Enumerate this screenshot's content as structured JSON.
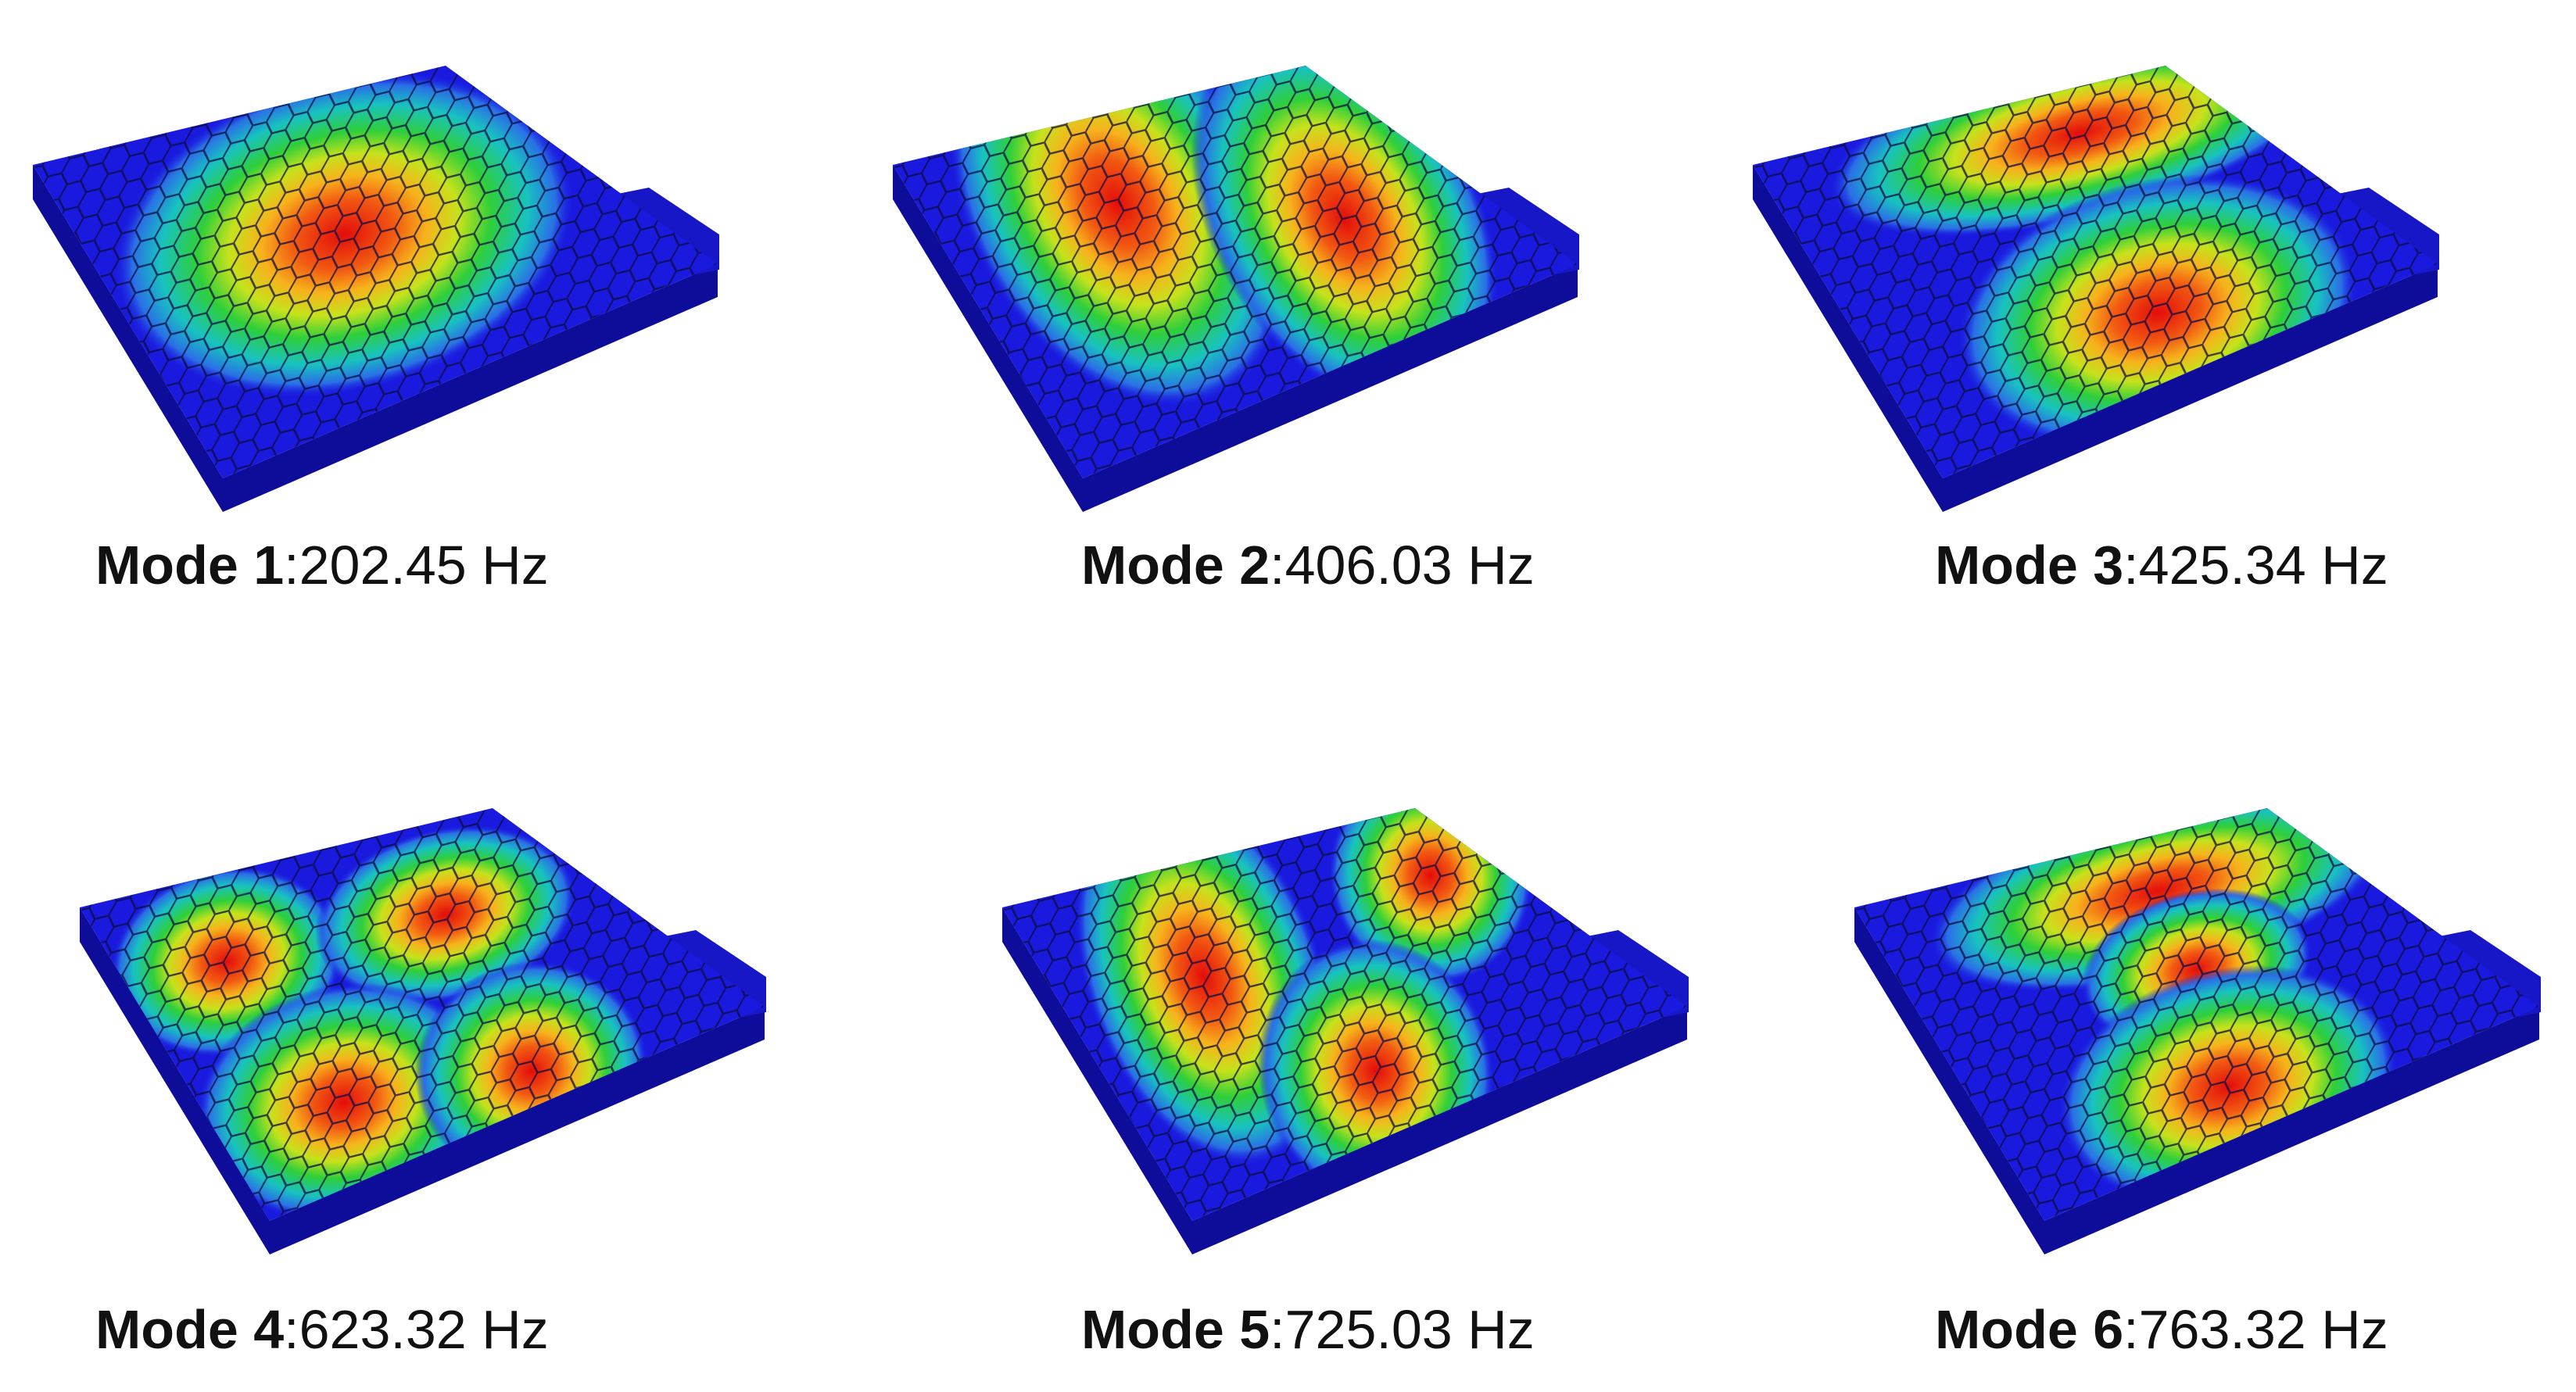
{
  "separator": ":",
  "modes": [
    {
      "label": "Mode 1",
      "frequency": "202.45 Hz"
    },
    {
      "label": "Mode 2",
      "frequency": "406.03 Hz"
    },
    {
      "label": "Mode 3",
      "frequency": "425.34 Hz"
    },
    {
      "label": "Mode 4",
      "frequency": "623.32 Hz"
    },
    {
      "label": "Mode 5",
      "frequency": "725.03 Hz"
    },
    {
      "label": "Mode 6",
      "frequency": "763.32 Hz"
    }
  ]
}
